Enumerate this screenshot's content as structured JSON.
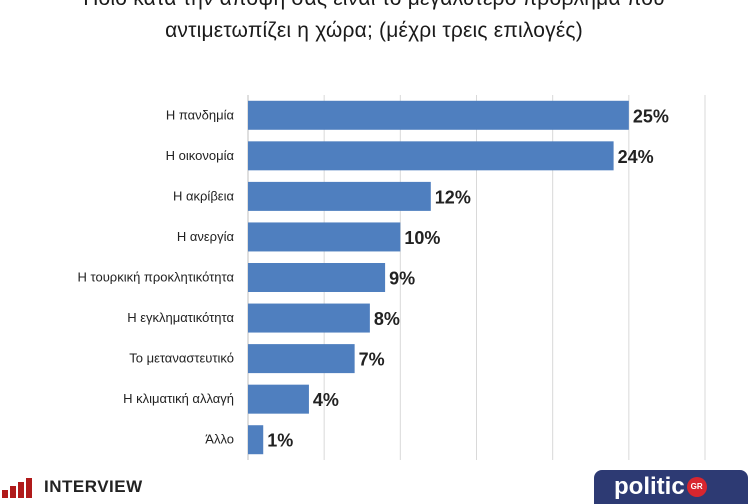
{
  "title_line_1": "Ποιο κατά την άποψή σας είναι το μεγαλύτερο πρόβλημα που",
  "title_line_2": "αντιμετωπίζει η χώρα; (μέχρι τρεις επιλογές)",
  "logos": {
    "left": "INTERVIEW",
    "right": "politic",
    "right_badge": "GR"
  },
  "colors": {
    "bar": "#4f7fbf",
    "grid": "#d9d9d9"
  },
  "chart_data": {
    "type": "bar",
    "orientation": "horizontal",
    "title": "Ποιο κατά την άποψή σας είναι το μεγαλύτερο πρόβλημα που αντιμετωπίζει η χώρα; (μέχρι τρεις επιλογές)",
    "categories": [
      "Η πανδημία",
      "Η οικονομία",
      "Η ακρίβεια",
      "Η ανεργία",
      "Η τουρκική προκλητικότητα",
      "Η εγκληματικότητα",
      "Το μεταναστευτικό",
      "Η κλιματική αλλαγή",
      "Άλλο"
    ],
    "values": [
      25,
      24,
      12,
      10,
      9,
      8,
      7,
      4,
      1
    ],
    "value_labels": [
      "25%",
      "24%",
      "12%",
      "10%",
      "9%",
      "8%",
      "7%",
      "4%",
      "1%"
    ],
    "xlim": [
      0,
      30
    ],
    "grid": true
  }
}
